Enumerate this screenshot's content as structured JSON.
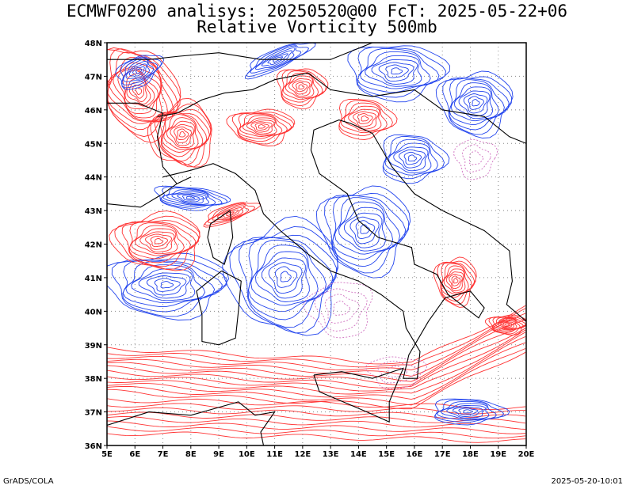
{
  "title": {
    "line1": "ECMWF0200 analisys: 20250520@00 FcT: 2025-05-22+06",
    "line2": "Relative Vorticity 500mb"
  },
  "axes": {
    "lat_labels": [
      "48N",
      "47N",
      "46N",
      "45N",
      "44N",
      "43N",
      "42N",
      "41N",
      "40N",
      "39N",
      "38N",
      "37N",
      "36N"
    ],
    "lon_labels": [
      "5E",
      "6E",
      "7E",
      "8E",
      "9E",
      "10E",
      "11E",
      "12E",
      "13E",
      "14E",
      "15E",
      "16E",
      "17E",
      "18E",
      "19E",
      "20E"
    ],
    "lat_range": [
      36,
      48
    ],
    "lon_range": [
      5,
      20
    ]
  },
  "colors": {
    "positive_vorticity": "#ff3333",
    "negative_vorticity": "#2244ee",
    "near_zero": "#d070c0",
    "coastline": "#000000",
    "grid": "#888888"
  },
  "footer": {
    "credit": "GrADS/COLA",
    "timestamp": "2025-05-20-10:01"
  }
}
